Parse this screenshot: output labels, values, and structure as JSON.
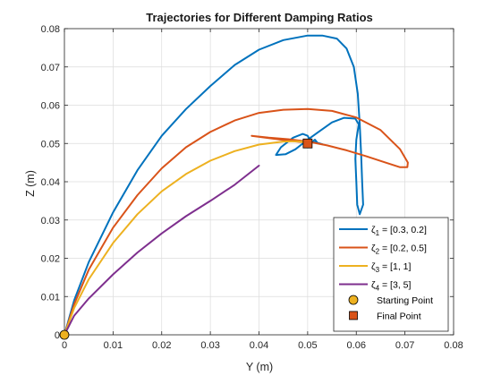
{
  "chart_data": {
    "type": "line",
    "title": "Trajectories for Different Damping Ratios",
    "xlabel": "Y (m)",
    "ylabel": "Z (m)",
    "xlim": [
      0,
      0.08
    ],
    "ylim": [
      0,
      0.08
    ],
    "xticks": [
      0,
      0.01,
      0.02,
      0.03,
      0.04,
      0.05,
      0.06,
      0.07,
      0.08
    ],
    "yticks": [
      0,
      0.01,
      0.02,
      0.03,
      0.04,
      0.05,
      0.06,
      0.07,
      0.08
    ],
    "xtick_labels": [
      "0",
      "0.01",
      "0.02",
      "0.03",
      "0.04",
      "0.05",
      "0.06",
      "0.07",
      "0.08"
    ],
    "ytick_labels": [
      "0",
      "0.01",
      "0.02",
      "0.03",
      "0.04",
      "0.05",
      "0.06",
      "0.07",
      "0.08"
    ],
    "grid": true,
    "legend_position": "bottom-right",
    "series": [
      {
        "symbol": "ζ",
        "sub": "1",
        "label_rest": " = [0.3, 0.2]",
        "color": "#0072BD",
        "points": [
          [
            0,
            0
          ],
          [
            0.002,
            0.009
          ],
          [
            0.005,
            0.019
          ],
          [
            0.01,
            0.032
          ],
          [
            0.015,
            0.043
          ],
          [
            0.02,
            0.052
          ],
          [
            0.025,
            0.059
          ],
          [
            0.03,
            0.065
          ],
          [
            0.035,
            0.0705
          ],
          [
            0.04,
            0.0745
          ],
          [
            0.045,
            0.077
          ],
          [
            0.05,
            0.0782
          ],
          [
            0.053,
            0.0782
          ],
          [
            0.056,
            0.0774
          ],
          [
            0.058,
            0.0748
          ],
          [
            0.0595,
            0.07
          ],
          [
            0.0603,
            0.063
          ],
          [
            0.0607,
            0.055
          ],
          [
            0.061,
            0.047
          ],
          [
            0.0612,
            0.04
          ],
          [
            0.0614,
            0.034
          ],
          [
            0.0607,
            0.0315
          ],
          [
            0.0602,
            0.034
          ],
          [
            0.06,
            0.04
          ],
          [
            0.0598,
            0.046
          ],
          [
            0.06,
            0.051
          ],
          [
            0.0605,
            0.055
          ],
          [
            0.0598,
            0.0565
          ],
          [
            0.0575,
            0.0567
          ],
          [
            0.055,
            0.0555
          ],
          [
            0.052,
            0.0528
          ],
          [
            0.0495,
            0.0505
          ],
          [
            0.0475,
            0.0485
          ],
          [
            0.0455,
            0.0472
          ],
          [
            0.0435,
            0.047
          ],
          [
            0.0445,
            0.049
          ],
          [
            0.047,
            0.0515
          ],
          [
            0.049,
            0.0525
          ],
          [
            0.05,
            0.052
          ],
          [
            0.0505,
            0.0508
          ],
          [
            0.051,
            0.0504
          ],
          [
            0.0515,
            0.051
          ],
          [
            0.052,
            0.0502
          ],
          [
            0.053,
            0.0498
          ],
          [
            0.0515,
            0.0503
          ],
          [
            0.0505,
            0.0503
          ]
        ]
      },
      {
        "symbol": "ζ",
        "sub": "2",
        "label_rest": " = [0.2, 0.5]",
        "color": "#D95319",
        "points": [
          [
            0,
            0
          ],
          [
            0.002,
            0.008
          ],
          [
            0.005,
            0.017
          ],
          [
            0.01,
            0.028
          ],
          [
            0.015,
            0.0365
          ],
          [
            0.02,
            0.0435
          ],
          [
            0.025,
            0.049
          ],
          [
            0.03,
            0.053
          ],
          [
            0.035,
            0.056
          ],
          [
            0.04,
            0.058
          ],
          [
            0.045,
            0.0588
          ],
          [
            0.05,
            0.059
          ],
          [
            0.055,
            0.0585
          ],
          [
            0.06,
            0.0568
          ],
          [
            0.065,
            0.0535
          ],
          [
            0.069,
            0.0485
          ],
          [
            0.0706,
            0.045
          ],
          [
            0.0705,
            0.0438
          ],
          [
            0.069,
            0.0438
          ],
          [
            0.066,
            0.045
          ],
          [
            0.062,
            0.0467
          ],
          [
            0.058,
            0.0482
          ],
          [
            0.054,
            0.0495
          ],
          [
            0.05,
            0.0505
          ],
          [
            0.046,
            0.0511
          ],
          [
            0.042,
            0.0515
          ],
          [
            0.0385,
            0.052
          ],
          [
            0.042,
            0.0514
          ],
          [
            0.047,
            0.0506
          ],
          [
            0.05,
            0.0502
          ]
        ]
      },
      {
        "symbol": "ζ",
        "sub": "3",
        "label_rest": " = [1, 1]",
        "color": "#EDB120",
        "points": [
          [
            0,
            0
          ],
          [
            0.002,
            0.007
          ],
          [
            0.005,
            0.0145
          ],
          [
            0.01,
            0.024
          ],
          [
            0.015,
            0.0315
          ],
          [
            0.02,
            0.0375
          ],
          [
            0.025,
            0.042
          ],
          [
            0.03,
            0.0455
          ],
          [
            0.035,
            0.048
          ],
          [
            0.04,
            0.0497
          ],
          [
            0.045,
            0.0505
          ],
          [
            0.048,
            0.0506
          ],
          [
            0.05,
            0.0502
          ]
        ]
      },
      {
        "symbol": "ζ",
        "sub": "4",
        "label_rest": " = [3, 5]",
        "color": "#7E2F8E",
        "points": [
          [
            0,
            0
          ],
          [
            0.002,
            0.005
          ],
          [
            0.005,
            0.0095
          ],
          [
            0.01,
            0.0158
          ],
          [
            0.015,
            0.0215
          ],
          [
            0.02,
            0.0265
          ],
          [
            0.025,
            0.031
          ],
          [
            0.03,
            0.035
          ],
          [
            0.035,
            0.0392
          ],
          [
            0.04,
            0.0442
          ]
        ]
      }
    ],
    "markers": [
      {
        "label": "Starting Point",
        "x": 0,
        "y": 0,
        "shape": "circle",
        "color": "#EDB120"
      },
      {
        "label": "Final Point",
        "x": 0.05,
        "y": 0.05,
        "shape": "square",
        "color": "#D95319"
      }
    ]
  }
}
